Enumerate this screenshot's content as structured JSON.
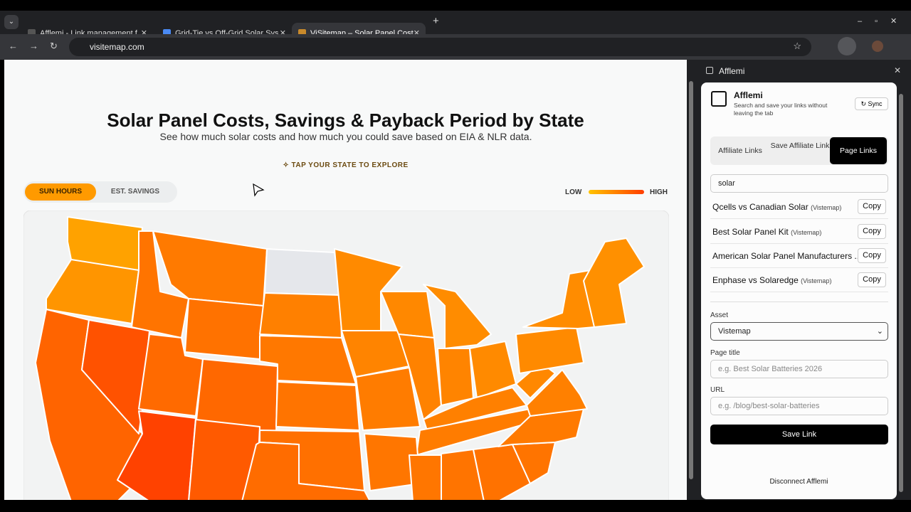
{
  "browser": {
    "tabs": [
      {
        "title": "Afflemi - Link management f"
      },
      {
        "title": "Grid-Tie vs Off-Grid Solar Sys"
      },
      {
        "title": "ViSitemap – Solar Panel Cost"
      }
    ],
    "address": "visitemap.com"
  },
  "page": {
    "title": "Solar Panel Costs, Savings & Payback Period by State",
    "subtitle": "See how much solar costs and how much you could save based on EIA & NLR data.",
    "cta": "TAP YOUR STATE TO EXPLORE",
    "toggles": [
      "SUN HOURS",
      "EST. SAVINGS"
    ],
    "legend": {
      "low": "LOW",
      "high": "HIGH"
    }
  },
  "panel": {
    "header": "Afflemi",
    "title": "Afflemi",
    "description": "Search and save your links without leaving the tab",
    "sync": "↻ Sync",
    "tabs": [
      "Affiliate Links",
      "Save Affiliate Link",
      "Page Links"
    ],
    "search": "solar",
    "links": [
      {
        "name": "Qcells vs Canadian Solar",
        "source": "(Vistemap)",
        "action": "Copy"
      },
      {
        "name": "Best Solar Panel Kit",
        "source": "(Vistemap)",
        "action": "Copy"
      },
      {
        "name": "American Solar Panel Manufacturers ...",
        "source": "",
        "action": "Copy"
      },
      {
        "name": "Enphase vs Solaredge",
        "source": "(Vistemap)",
        "action": "Copy"
      }
    ],
    "asset_label": "Asset",
    "asset_value": "Vistemap",
    "page_title_label": "Page title",
    "page_title_placeholder": "e.g. Best Solar Batteries 2026",
    "url_label": "URL",
    "url_placeholder": "e.g. /blog/best-solar-batteries",
    "save": "Save Link",
    "disconnect": "Disconnect Afflemi"
  }
}
